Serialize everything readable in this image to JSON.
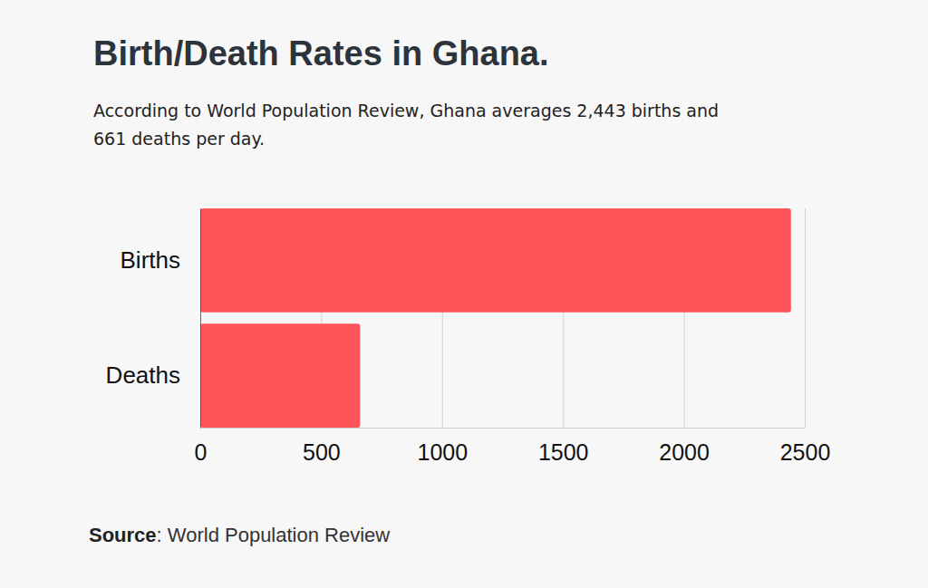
{
  "chart_data": {
    "type": "bar",
    "orientation": "horizontal",
    "title": "Birth/Death Rates in Ghana.",
    "subtitle": "According to World Population Review, Ghana averages 2,443 births and 661 deaths per day.",
    "source": "Source: World Population Review",
    "categories": [
      "Births",
      "Deaths"
    ],
    "values": [
      2443,
      661
    ],
    "color": "#fd5558",
    "xlim": [
      0,
      2500
    ],
    "xticks": [
      0,
      500,
      1000,
      1500,
      2000,
      2500
    ],
    "grid": true
  }
}
